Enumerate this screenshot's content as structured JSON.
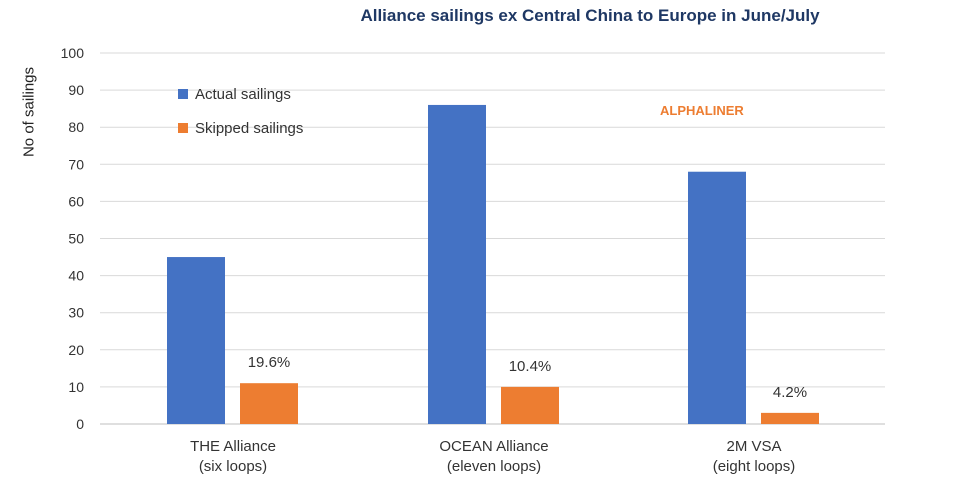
{
  "chart_data": {
    "type": "bar",
    "title": "Alliance sailings ex Central China to Europe in June/July",
    "ylabel": "No of sailings",
    "xlabel": "",
    "ylim": [
      0,
      100
    ],
    "yticks": [
      0,
      10,
      20,
      30,
      40,
      50,
      60,
      70,
      80,
      90,
      100
    ],
    "grid": true,
    "legend_position": "top-left",
    "categories": [
      [
        "THE Alliance",
        "(six loops)"
      ],
      [
        "OCEAN Alliance",
        "(eleven loops)"
      ],
      [
        "2M VSA",
        "(eight loops)"
      ]
    ],
    "series": [
      {
        "name": "Actual sailings",
        "color": "#4472C4",
        "values": [
          45,
          86,
          68
        ]
      },
      {
        "name": "Skipped sailings",
        "color": "#ED7D31",
        "values": [
          11,
          10,
          3
        ],
        "labels": [
          "19.6%",
          "10.4%",
          "4.2%"
        ]
      }
    ],
    "annotation": "ALPHALINER"
  }
}
